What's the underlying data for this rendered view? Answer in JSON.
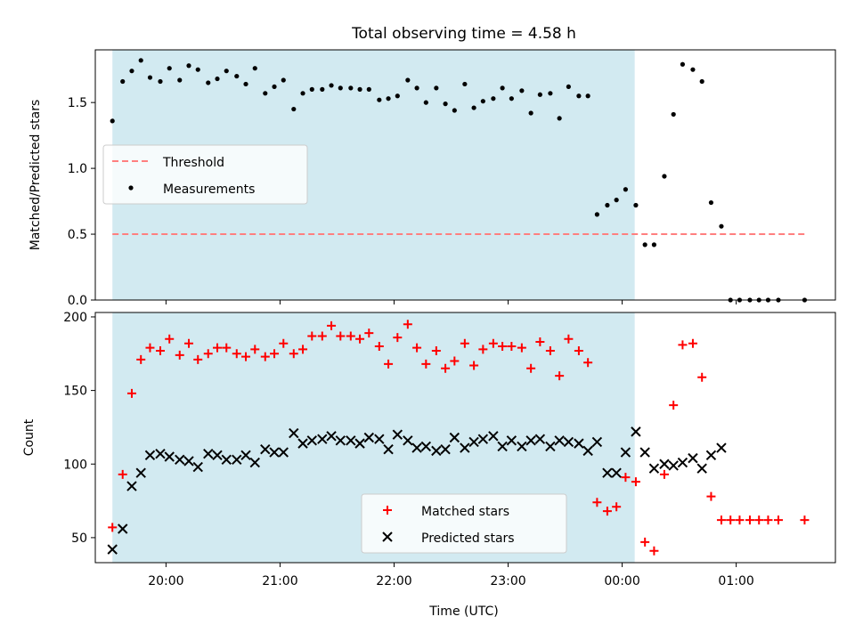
{
  "figure": {
    "title": "Total observing time = 4.58 h",
    "xlabel": "Time (UTC)"
  },
  "chart_data": [
    {
      "type": "scatter",
      "panel": "top",
      "ylabel": "Matched/Predicted stars",
      "xlim_hours": [
        19.38,
        25.87
      ],
      "ylim": [
        0,
        1.9
      ],
      "yticks": [
        0.0,
        0.5,
        1.0,
        1.5
      ],
      "yticklabels": [
        "0.0",
        "0.5",
        "1.0",
        "1.5"
      ],
      "shaded_interval_hours": [
        19.53,
        24.11
      ],
      "shade_color": "#add8e6",
      "threshold": {
        "label": "Threshold",
        "value": 0.5,
        "x_range_hours": [
          19.53,
          25.6
        ],
        "color": "#ff7f7f"
      },
      "legend": {
        "position": "center-left",
        "entries": [
          "Threshold",
          "Measurements"
        ]
      },
      "series": [
        {
          "name": "Measurements",
          "color": "#000000",
          "points": [
            [
              19.53,
              1.36
            ],
            [
              19.62,
              1.66
            ],
            [
              19.7,
              1.74
            ],
            [
              19.78,
              1.82
            ],
            [
              19.86,
              1.69
            ],
            [
              19.95,
              1.66
            ],
            [
              20.03,
              1.76
            ],
            [
              20.12,
              1.67
            ],
            [
              20.2,
              1.78
            ],
            [
              20.28,
              1.75
            ],
            [
              20.37,
              1.65
            ],
            [
              20.45,
              1.68
            ],
            [
              20.53,
              1.74
            ],
            [
              20.62,
              1.7
            ],
            [
              20.7,
              1.64
            ],
            [
              20.78,
              1.76
            ],
            [
              20.87,
              1.57
            ],
            [
              20.95,
              1.62
            ],
            [
              21.03,
              1.67
            ],
            [
              21.12,
              1.45
            ],
            [
              21.2,
              1.57
            ],
            [
              21.28,
              1.6
            ],
            [
              21.37,
              1.6
            ],
            [
              21.45,
              1.63
            ],
            [
              21.53,
              1.61
            ],
            [
              21.62,
              1.61
            ],
            [
              21.7,
              1.6
            ],
            [
              21.78,
              1.6
            ],
            [
              21.87,
              1.52
            ],
            [
              21.95,
              1.53
            ],
            [
              22.03,
              1.55
            ],
            [
              22.12,
              1.67
            ],
            [
              22.2,
              1.61
            ],
            [
              22.28,
              1.5
            ],
            [
              22.37,
              1.61
            ],
            [
              22.45,
              1.49
            ],
            [
              22.53,
              1.44
            ],
            [
              22.62,
              1.64
            ],
            [
              22.7,
              1.46
            ],
            [
              22.78,
              1.51
            ],
            [
              22.87,
              1.53
            ],
            [
              22.95,
              1.61
            ],
            [
              23.03,
              1.53
            ],
            [
              23.12,
              1.59
            ],
            [
              23.2,
              1.42
            ],
            [
              23.28,
              1.56
            ],
            [
              23.37,
              1.57
            ],
            [
              23.45,
              1.38
            ],
            [
              23.53,
              1.62
            ],
            [
              23.62,
              1.55
            ],
            [
              23.7,
              1.55
            ],
            [
              23.78,
              0.65
            ],
            [
              23.87,
              0.72
            ],
            [
              23.95,
              0.76
            ],
            [
              24.03,
              0.84
            ],
            [
              24.12,
              0.72
            ],
            [
              24.2,
              0.42
            ],
            [
              24.28,
              0.42
            ],
            [
              24.37,
              0.94
            ],
            [
              24.45,
              1.41
            ],
            [
              24.53,
              1.79
            ],
            [
              24.62,
              1.75
            ],
            [
              24.7,
              1.66
            ],
            [
              24.78,
              0.74
            ],
            [
              24.87,
              0.56
            ],
            [
              24.95,
              0.0
            ],
            [
              25.03,
              0.0
            ],
            [
              25.12,
              0.0
            ],
            [
              25.2,
              0.0
            ],
            [
              25.28,
              0.0
            ],
            [
              25.37,
              0.0
            ],
            [
              25.6,
              0.0
            ]
          ]
        }
      ]
    },
    {
      "type": "scatter",
      "panel": "bottom",
      "ylabel": "Count",
      "xlim_hours": [
        19.38,
        25.87
      ],
      "ylim": [
        33,
        203
      ],
      "yticks": [
        50,
        100,
        150,
        200
      ],
      "yticklabels": [
        "50",
        "100",
        "150",
        "200"
      ],
      "xticks_hours": [
        20,
        21,
        22,
        23,
        24,
        25
      ],
      "xticklabels": [
        "20:00",
        "21:00",
        "22:00",
        "23:00",
        "00:00",
        "01:00"
      ],
      "shaded_interval_hours": [
        19.53,
        24.11
      ],
      "shade_color": "#add8e6",
      "legend": {
        "position": "lower-center",
        "entries": [
          "Matched stars",
          "Predicted stars"
        ]
      },
      "series": [
        {
          "name": "Matched stars",
          "marker": "+",
          "color": "#ff0000",
          "points": [
            [
              19.53,
              57
            ],
            [
              19.62,
              93
            ],
            [
              19.7,
              148
            ],
            [
              19.78,
              171
            ],
            [
              19.86,
              179
            ],
            [
              19.95,
              177
            ],
            [
              20.03,
              185
            ],
            [
              20.12,
              174
            ],
            [
              20.2,
              182
            ],
            [
              20.28,
              171
            ],
            [
              20.37,
              175
            ],
            [
              20.45,
              179
            ],
            [
              20.53,
              179
            ],
            [
              20.62,
              175
            ],
            [
              20.7,
              173
            ],
            [
              20.78,
              178
            ],
            [
              20.87,
              173
            ],
            [
              20.95,
              175
            ],
            [
              21.03,
              182
            ],
            [
              21.12,
              175
            ],
            [
              21.2,
              178
            ],
            [
              21.28,
              187
            ],
            [
              21.37,
              187
            ],
            [
              21.45,
              194
            ],
            [
              21.53,
              187
            ],
            [
              21.62,
              187
            ],
            [
              21.7,
              185
            ],
            [
              21.78,
              189
            ],
            [
              21.87,
              180
            ],
            [
              21.95,
              168
            ],
            [
              22.03,
              186
            ],
            [
              22.12,
              195
            ],
            [
              22.2,
              179
            ],
            [
              22.28,
              168
            ],
            [
              22.37,
              177
            ],
            [
              22.45,
              165
            ],
            [
              22.53,
              170
            ],
            [
              22.62,
              182
            ],
            [
              22.7,
              167
            ],
            [
              22.78,
              178
            ],
            [
              22.87,
              182
            ],
            [
              22.95,
              180
            ],
            [
              23.03,
              180
            ],
            [
              23.12,
              179
            ],
            [
              23.2,
              165
            ],
            [
              23.28,
              183
            ],
            [
              23.37,
              177
            ],
            [
              23.45,
              160
            ],
            [
              23.53,
              185
            ],
            [
              23.62,
              177
            ],
            [
              23.7,
              169
            ],
            [
              23.78,
              74
            ],
            [
              23.87,
              68
            ],
            [
              23.95,
              71
            ],
            [
              24.03,
              91
            ],
            [
              24.12,
              88
            ],
            [
              24.2,
              47
            ],
            [
              24.28,
              41
            ],
            [
              24.37,
              93
            ],
            [
              24.45,
              140
            ],
            [
              24.53,
              181
            ],
            [
              24.62,
              182
            ],
            [
              24.7,
              159
            ],
            [
              24.78,
              78
            ],
            [
              24.87,
              62
            ],
            [
              24.95,
              62
            ],
            [
              25.03,
              62
            ],
            [
              25.12,
              62
            ],
            [
              25.2,
              62
            ],
            [
              25.28,
              62
            ],
            [
              25.37,
              62
            ],
            [
              25.6,
              62
            ]
          ]
        },
        {
          "name": "Predicted stars",
          "marker": "x",
          "color": "#000000",
          "points": [
            [
              19.53,
              42
            ],
            [
              19.62,
              56
            ],
            [
              19.7,
              85
            ],
            [
              19.78,
              94
            ],
            [
              19.86,
              106
            ],
            [
              19.95,
              107
            ],
            [
              20.03,
              105
            ],
            [
              20.12,
              103
            ],
            [
              20.2,
              102
            ],
            [
              20.28,
              98
            ],
            [
              20.37,
              107
            ],
            [
              20.45,
              106
            ],
            [
              20.53,
              103
            ],
            [
              20.62,
              103
            ],
            [
              20.7,
              106
            ],
            [
              20.78,
              101
            ],
            [
              20.87,
              110
            ],
            [
              20.95,
              108
            ],
            [
              21.03,
              108
            ],
            [
              21.12,
              121
            ],
            [
              21.2,
              114
            ],
            [
              21.28,
              116
            ],
            [
              21.37,
              117
            ],
            [
              21.45,
              119
            ],
            [
              21.53,
              116
            ],
            [
              21.62,
              116
            ],
            [
              21.7,
              114
            ],
            [
              21.78,
              118
            ],
            [
              21.87,
              117
            ],
            [
              21.95,
              110
            ],
            [
              22.03,
              120
            ],
            [
              22.12,
              116
            ],
            [
              22.2,
              111
            ],
            [
              22.28,
              112
            ],
            [
              22.37,
              109
            ],
            [
              22.45,
              110
            ],
            [
              22.53,
              118
            ],
            [
              22.62,
              111
            ],
            [
              22.7,
              115
            ],
            [
              22.78,
              117
            ],
            [
              22.87,
              119
            ],
            [
              22.95,
              112
            ],
            [
              23.03,
              116
            ],
            [
              23.12,
              112
            ],
            [
              23.2,
              116
            ],
            [
              23.28,
              117
            ],
            [
              23.37,
              112
            ],
            [
              23.45,
              116
            ],
            [
              23.53,
              115
            ],
            [
              23.62,
              114
            ],
            [
              23.7,
              109
            ],
            [
              23.78,
              115
            ],
            [
              23.87,
              94
            ],
            [
              23.95,
              94
            ],
            [
              24.03,
              108
            ],
            [
              24.12,
              122
            ],
            [
              24.2,
              108
            ],
            [
              24.28,
              97
            ],
            [
              24.37,
              100
            ],
            [
              24.45,
              99
            ],
            [
              24.53,
              101
            ],
            [
              24.62,
              104
            ],
            [
              24.7,
              97
            ],
            [
              24.78,
              106
            ],
            [
              24.87,
              111
            ]
          ]
        }
      ]
    }
  ]
}
